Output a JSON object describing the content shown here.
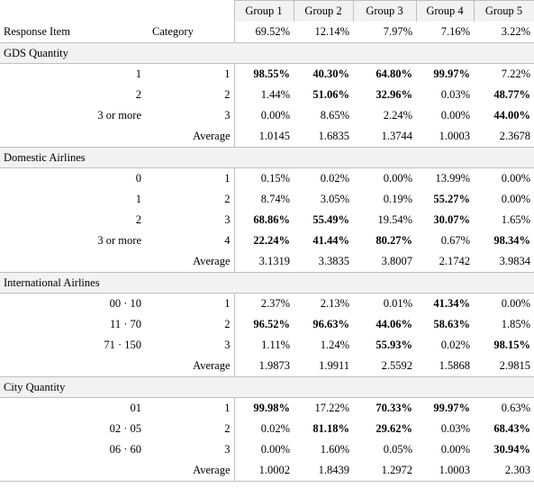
{
  "groups": [
    "Group 1",
    "Group 2",
    "Group 3",
    "Group 4",
    "Group 5"
  ],
  "header": {
    "response_item": "Response Item",
    "category": "Category",
    "percents": [
      "69.52%",
      "12.14%",
      "7.97%",
      "7.16%",
      "3.22%"
    ]
  },
  "sections": [
    {
      "title": "GDS Quantity",
      "rows": [
        {
          "label": "1",
          "cat": "1",
          "vals": [
            "98.55%",
            "40.30%",
            "64.80%",
            "99.97%",
            "7.22%"
          ],
          "bold": [
            true,
            true,
            true,
            true,
            false
          ]
        },
        {
          "label": "2",
          "cat": "2",
          "vals": [
            "1.44%",
            "51.06%",
            "32.96%",
            "0.03%",
            "48.77%"
          ],
          "bold": [
            false,
            true,
            true,
            false,
            true
          ]
        },
        {
          "label": "3 or more",
          "cat": "3",
          "vals": [
            "0.00%",
            "8.65%",
            "2.24%",
            "0.00%",
            "44.00%"
          ],
          "bold": [
            false,
            false,
            false,
            false,
            true
          ]
        },
        {
          "label": "",
          "cat": "Average",
          "vals": [
            "1.0145",
            "1.6835",
            "1.3744",
            "1.0003",
            "2.3678"
          ],
          "bold": [
            false,
            false,
            false,
            false,
            false
          ]
        }
      ]
    },
    {
      "title": "Domestic Airlines",
      "rows": [
        {
          "label": "0",
          "cat": "1",
          "vals": [
            "0.15%",
            "0.02%",
            "0.00%",
            "13.99%",
            "0.00%"
          ],
          "bold": [
            false,
            false,
            false,
            false,
            false
          ]
        },
        {
          "label": "1",
          "cat": "2",
          "vals": [
            "8.74%",
            "3.05%",
            "0.19%",
            "55.27%",
            "0.00%"
          ],
          "bold": [
            false,
            false,
            false,
            true,
            false
          ]
        },
        {
          "label": "2",
          "cat": "3",
          "vals": [
            "68.86%",
            "55.49%",
            "19.54%",
            "30.07%",
            "1.65%"
          ],
          "bold": [
            true,
            true,
            false,
            true,
            false
          ]
        },
        {
          "label": "3 or more",
          "cat": "4",
          "vals": [
            "22.24%",
            "41.44%",
            "80.27%",
            "0.67%",
            "98.34%"
          ],
          "bold": [
            true,
            true,
            true,
            false,
            true
          ]
        },
        {
          "label": "",
          "cat": "Average",
          "vals": [
            "3.1319",
            "3.3835",
            "3.8007",
            "2.1742",
            "3.9834"
          ],
          "bold": [
            false,
            false,
            false,
            false,
            false
          ]
        }
      ]
    },
    {
      "title": "International Airlines",
      "rows": [
        {
          "label": "00 · 10",
          "cat": "1",
          "vals": [
            "2.37%",
            "2.13%",
            "0.01%",
            "41.34%",
            "0.00%"
          ],
          "bold": [
            false,
            false,
            false,
            true,
            false
          ]
        },
        {
          "label": "11 · 70",
          "cat": "2",
          "vals": [
            "96.52%",
            "96.63%",
            "44.06%",
            "58.63%",
            "1.85%"
          ],
          "bold": [
            true,
            true,
            true,
            true,
            false
          ]
        },
        {
          "label": "71 · 150",
          "cat": "3",
          "vals": [
            "1.11%",
            "1.24%",
            "55.93%",
            "0.02%",
            "98.15%"
          ],
          "bold": [
            false,
            false,
            true,
            false,
            true
          ]
        },
        {
          "label": "",
          "cat": "Average",
          "vals": [
            "1.9873",
            "1.9911",
            "2.5592",
            "1.5868",
            "2.9815"
          ],
          "bold": [
            false,
            false,
            false,
            false,
            false
          ]
        }
      ]
    },
    {
      "title": "City Quantity",
      "rows": [
        {
          "label": "01",
          "cat": "1",
          "vals": [
            "99.98%",
            "17.22%",
            "70.33%",
            "99.97%",
            "0.63%"
          ],
          "bold": [
            true,
            false,
            true,
            true,
            false
          ]
        },
        {
          "label": "02 · 05",
          "cat": "2",
          "vals": [
            "0.02%",
            "81.18%",
            "29.62%",
            "0.03%",
            "68.43%"
          ],
          "bold": [
            false,
            true,
            true,
            false,
            true
          ]
        },
        {
          "label": "06 · 60",
          "cat": "3",
          "vals": [
            "0.00%",
            "1.60%",
            "0.05%",
            "0.00%",
            "30.94%"
          ],
          "bold": [
            false,
            false,
            false,
            false,
            true
          ]
        },
        {
          "label": "",
          "cat": "Average",
          "vals": [
            "1.0002",
            "1.8439",
            "1.2972",
            "1.0003",
            "2.303"
          ],
          "bold": [
            false,
            false,
            false,
            false,
            false
          ]
        }
      ]
    }
  ]
}
